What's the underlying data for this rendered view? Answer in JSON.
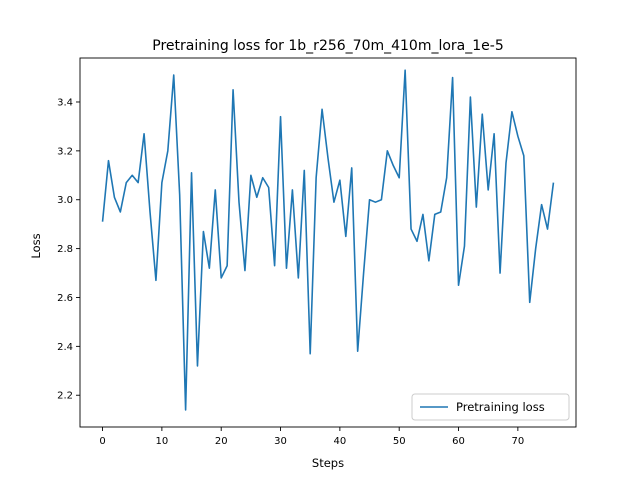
{
  "chart_data": {
    "type": "line",
    "title": "Pretraining loss for 1b_r256_70m_410m_lora_1e-5",
    "xlabel": "Steps",
    "ylabel": "Loss",
    "xlim": [
      -3.8,
      79.8
    ],
    "ylim": [
      2.07,
      3.58
    ],
    "xticks": [
      0,
      10,
      20,
      30,
      40,
      50,
      60,
      70
    ],
    "xtick_labels": [
      "0",
      "10",
      "20",
      "30",
      "40",
      "50",
      "60",
      "70"
    ],
    "yticks": [
      2.2,
      2.4,
      2.6,
      2.8,
      3.0,
      3.2,
      3.4
    ],
    "ytick_labels": [
      "2.2",
      "2.4",
      "2.6",
      "2.8",
      "3.0",
      "3.2",
      "3.4"
    ],
    "grid": false,
    "legend_position": "lower-right",
    "series": [
      {
        "name": "Pretraining loss",
        "color": "#1f77b4",
        "x": [
          0,
          1,
          2,
          3,
          4,
          5,
          6,
          7,
          8,
          9,
          10,
          11,
          12,
          13,
          14,
          15,
          16,
          17,
          18,
          19,
          20,
          21,
          22,
          23,
          24,
          25,
          26,
          27,
          28,
          29,
          30,
          31,
          32,
          33,
          34,
          35,
          36,
          37,
          38,
          39,
          40,
          41,
          42,
          43,
          44,
          45,
          46,
          47,
          48,
          49,
          50,
          51,
          52,
          53,
          54,
          55,
          56,
          57,
          58,
          59,
          60,
          61,
          62,
          63,
          64,
          65,
          66,
          67,
          68,
          69,
          70,
          71,
          72,
          73,
          74,
          75,
          76
        ],
        "values": [
          2.91,
          3.16,
          3.01,
          2.95,
          3.07,
          3.1,
          3.07,
          3.27,
          2.95,
          2.67,
          3.07,
          3.2,
          3.51,
          3.02,
          2.14,
          3.11,
          2.32,
          2.87,
          2.72,
          3.04,
          2.68,
          2.73,
          3.45,
          2.99,
          2.71,
          3.1,
          3.01,
          3.09,
          3.05,
          2.73,
          3.34,
          2.72,
          3.04,
          2.68,
          3.12,
          2.37,
          3.09,
          3.37,
          3.17,
          2.99,
          3.08,
          2.85,
          3.13,
          2.38,
          2.7,
          3.0,
          2.99,
          3.0,
          3.2,
          3.14,
          3.09,
          3.53,
          2.88,
          2.83,
          2.94,
          2.75,
          2.94,
          2.95,
          3.09,
          3.5,
          2.65,
          2.81,
          3.42,
          2.97,
          3.35,
          3.04,
          3.27,
          2.7,
          3.15,
          3.36,
          3.26,
          3.18,
          2.58,
          2.8,
          2.98,
          2.88,
          3.07
        ]
      }
    ]
  }
}
